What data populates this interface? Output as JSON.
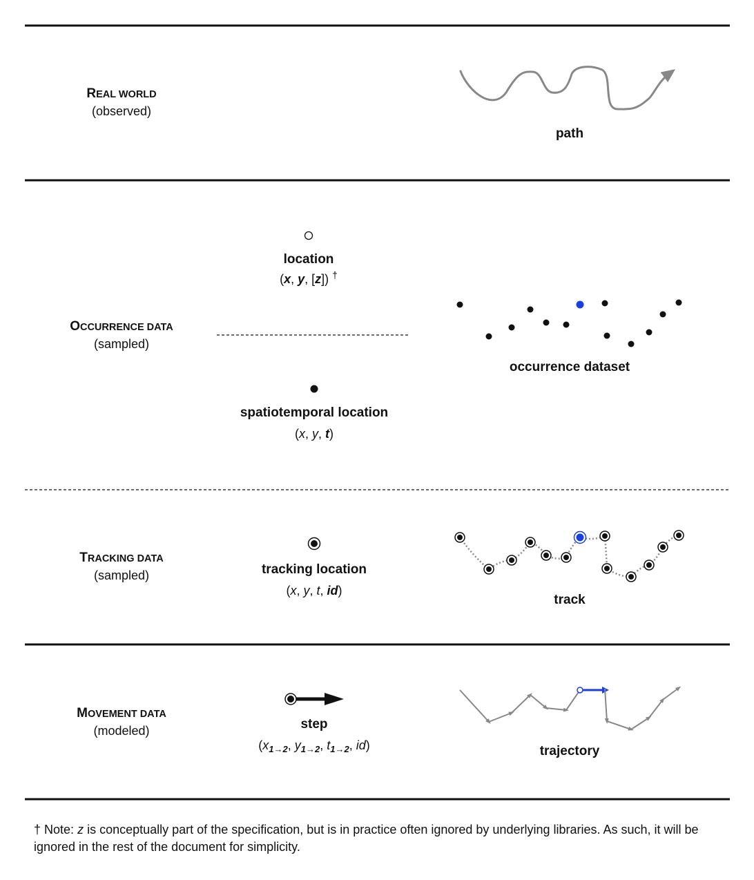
{
  "rows": {
    "real_world": {
      "title_initial": "R",
      "title_rest": "EAL WORLD",
      "qualifier": "(observed)",
      "right_label": "path"
    },
    "occurrence": {
      "title_initial": "O",
      "title_rest": "CCURRENCE DATA",
      "qualifier": "(sampled)",
      "location_label": "location",
      "location_coords": {
        "open": "(",
        "x": "x",
        "sep1": ", ",
        "y": "y",
        "sep2": ", [",
        "z": "z",
        "close": "])",
        "dagger": "†"
      },
      "st_label": "spatiotemporal location",
      "st_coords": {
        "open": "(",
        "x": "x",
        "sep1": ", ",
        "y": "y",
        "sep2": ", ",
        "t": "t",
        "close": ")"
      },
      "right_label": "occurrence dataset"
    },
    "tracking": {
      "title_initial": "T",
      "title_rest": "RACKING DATA",
      "qualifier": "(sampled)",
      "center_label": "tracking location",
      "coords": {
        "open": "(",
        "x": "x",
        "sep1": ", ",
        "y": "y",
        "sep2": ", ",
        "t": "t",
        "sep3": ", ",
        "id": "id",
        "close": ")"
      },
      "right_label": "track"
    },
    "movement": {
      "title_initial": "M",
      "title_rest": "OVEMENT DATA",
      "qualifier": "(modeled)",
      "center_label": "step",
      "coords": {
        "open": "(",
        "x": "x",
        "y": "y",
        "t": "t",
        "sub": "1→2",
        "sep": ", ",
        "id": "id",
        "close": ")"
      },
      "right_label": "trajectory"
    }
  },
  "footnote": {
    "dagger": "†",
    "prefix": "Note:",
    "var": "z",
    "text": "is conceptually part of the specification, but is in practice often ignored by underlying libraries. As such, it will be ignored in the rest of the document for simplicity."
  },
  "colors": {
    "ink": "#111111",
    "highlight": "#1a3fe0",
    "path_gray": "#888888"
  },
  "icons": {
    "path": "wavy-arrow",
    "location": "open-circle",
    "spatiotemporal_location": "filled-dot",
    "tracking_location": "ringed-dot",
    "step": "arrow"
  }
}
